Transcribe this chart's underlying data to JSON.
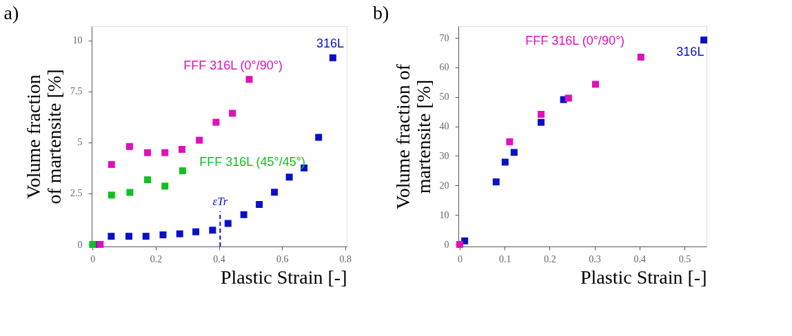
{
  "chart_data": [
    {
      "type": "scatter",
      "title": "a)",
      "xlabel": "Plastic Strain [-]",
      "ylabel": "Volume fraction\nof martensite [%]",
      "marker": "square",
      "grid": false,
      "legend": false,
      "xlim": [
        -0.003,
        0.805
      ],
      "xticks": [
        0,
        0.2,
        0.4,
        0.6,
        0.8
      ],
      "ylim": [
        -0.1,
        10.7
      ],
      "yticks": [
        0,
        2.5,
        5,
        7.5,
        10
      ],
      "series": [
        {
          "name": "316L",
          "color": "#0a10c8",
          "x": [
            0.009,
            0.059,
            0.115,
            0.169,
            0.223,
            0.276,
            0.327,
            0.38,
            0.429,
            0.479,
            0.528,
            0.576,
            0.623,
            0.67,
            0.716,
            0.761
          ],
          "values": [
            0,
            0.4,
            0.4,
            0.4,
            0.47,
            0.52,
            0.62,
            0.7,
            1.03,
            1.46,
            1.96,
            2.56,
            3.3,
            3.75,
            5.25,
            9.15
          ]
        },
        {
          "name": "FFF 316L (0°/90°)",
          "color": "#e010b8",
          "x": [
            0.024,
            0.06,
            0.117,
            0.174,
            0.229,
            0.283,
            0.338,
            0.391,
            0.443,
            0.496
          ],
          "values": [
            0,
            3.92,
            4.8,
            4.5,
            4.5,
            4.66,
            5.11,
            5.99,
            6.43,
            8.09
          ]
        },
        {
          "name": "FFF 316L (45°/45°)",
          "color": "#10c020",
          "x": [
            0,
            0.06,
            0.118,
            0.174,
            0.229,
            0.285
          ],
          "values": [
            0,
            2.42,
            2.55,
            3.17,
            2.86,
            3.61
          ]
        }
      ],
      "ref_lines": [
        {
          "axis": "x",
          "value": 0.404,
          "label": "εTr",
          "color": "#0a10c8",
          "line_style": "dashed"
        }
      ]
    },
    {
      "type": "scatter",
      "title": "b)",
      "xlabel": "Plastic Strain [-]",
      "ylabel": "Volume fraction of\nmartensite [%]",
      "marker": "square",
      "grid": false,
      "legend": false,
      "xlim": [
        -0.003,
        0.549
      ],
      "xticks": [
        0,
        0.1,
        0.2,
        0.3,
        0.4,
        0.5
      ],
      "ylim": [
        -0.7,
        74
      ],
      "yticks": [
        0,
        10,
        20,
        30,
        40,
        50,
        60,
        70
      ],
      "series": [
        {
          "name": "316L",
          "color": "#0a10c8",
          "x": [
            0.011,
            0.081,
            0.101,
            0.121,
            0.181,
            0.231,
            0.543
          ],
          "values": [
            1.2,
            21.2,
            27.9,
            31.2,
            41.4,
            49.1,
            69.3
          ]
        },
        {
          "name": "FFF 316L (0°/90°)",
          "color": "#e010b8",
          "x": [
            0,
            0.111,
            0.181,
            0.242,
            0.302,
            0.403
          ],
          "values": [
            0,
            34.8,
            44.1,
            49.6,
            54.3,
            63.5
          ]
        }
      ]
    }
  ]
}
